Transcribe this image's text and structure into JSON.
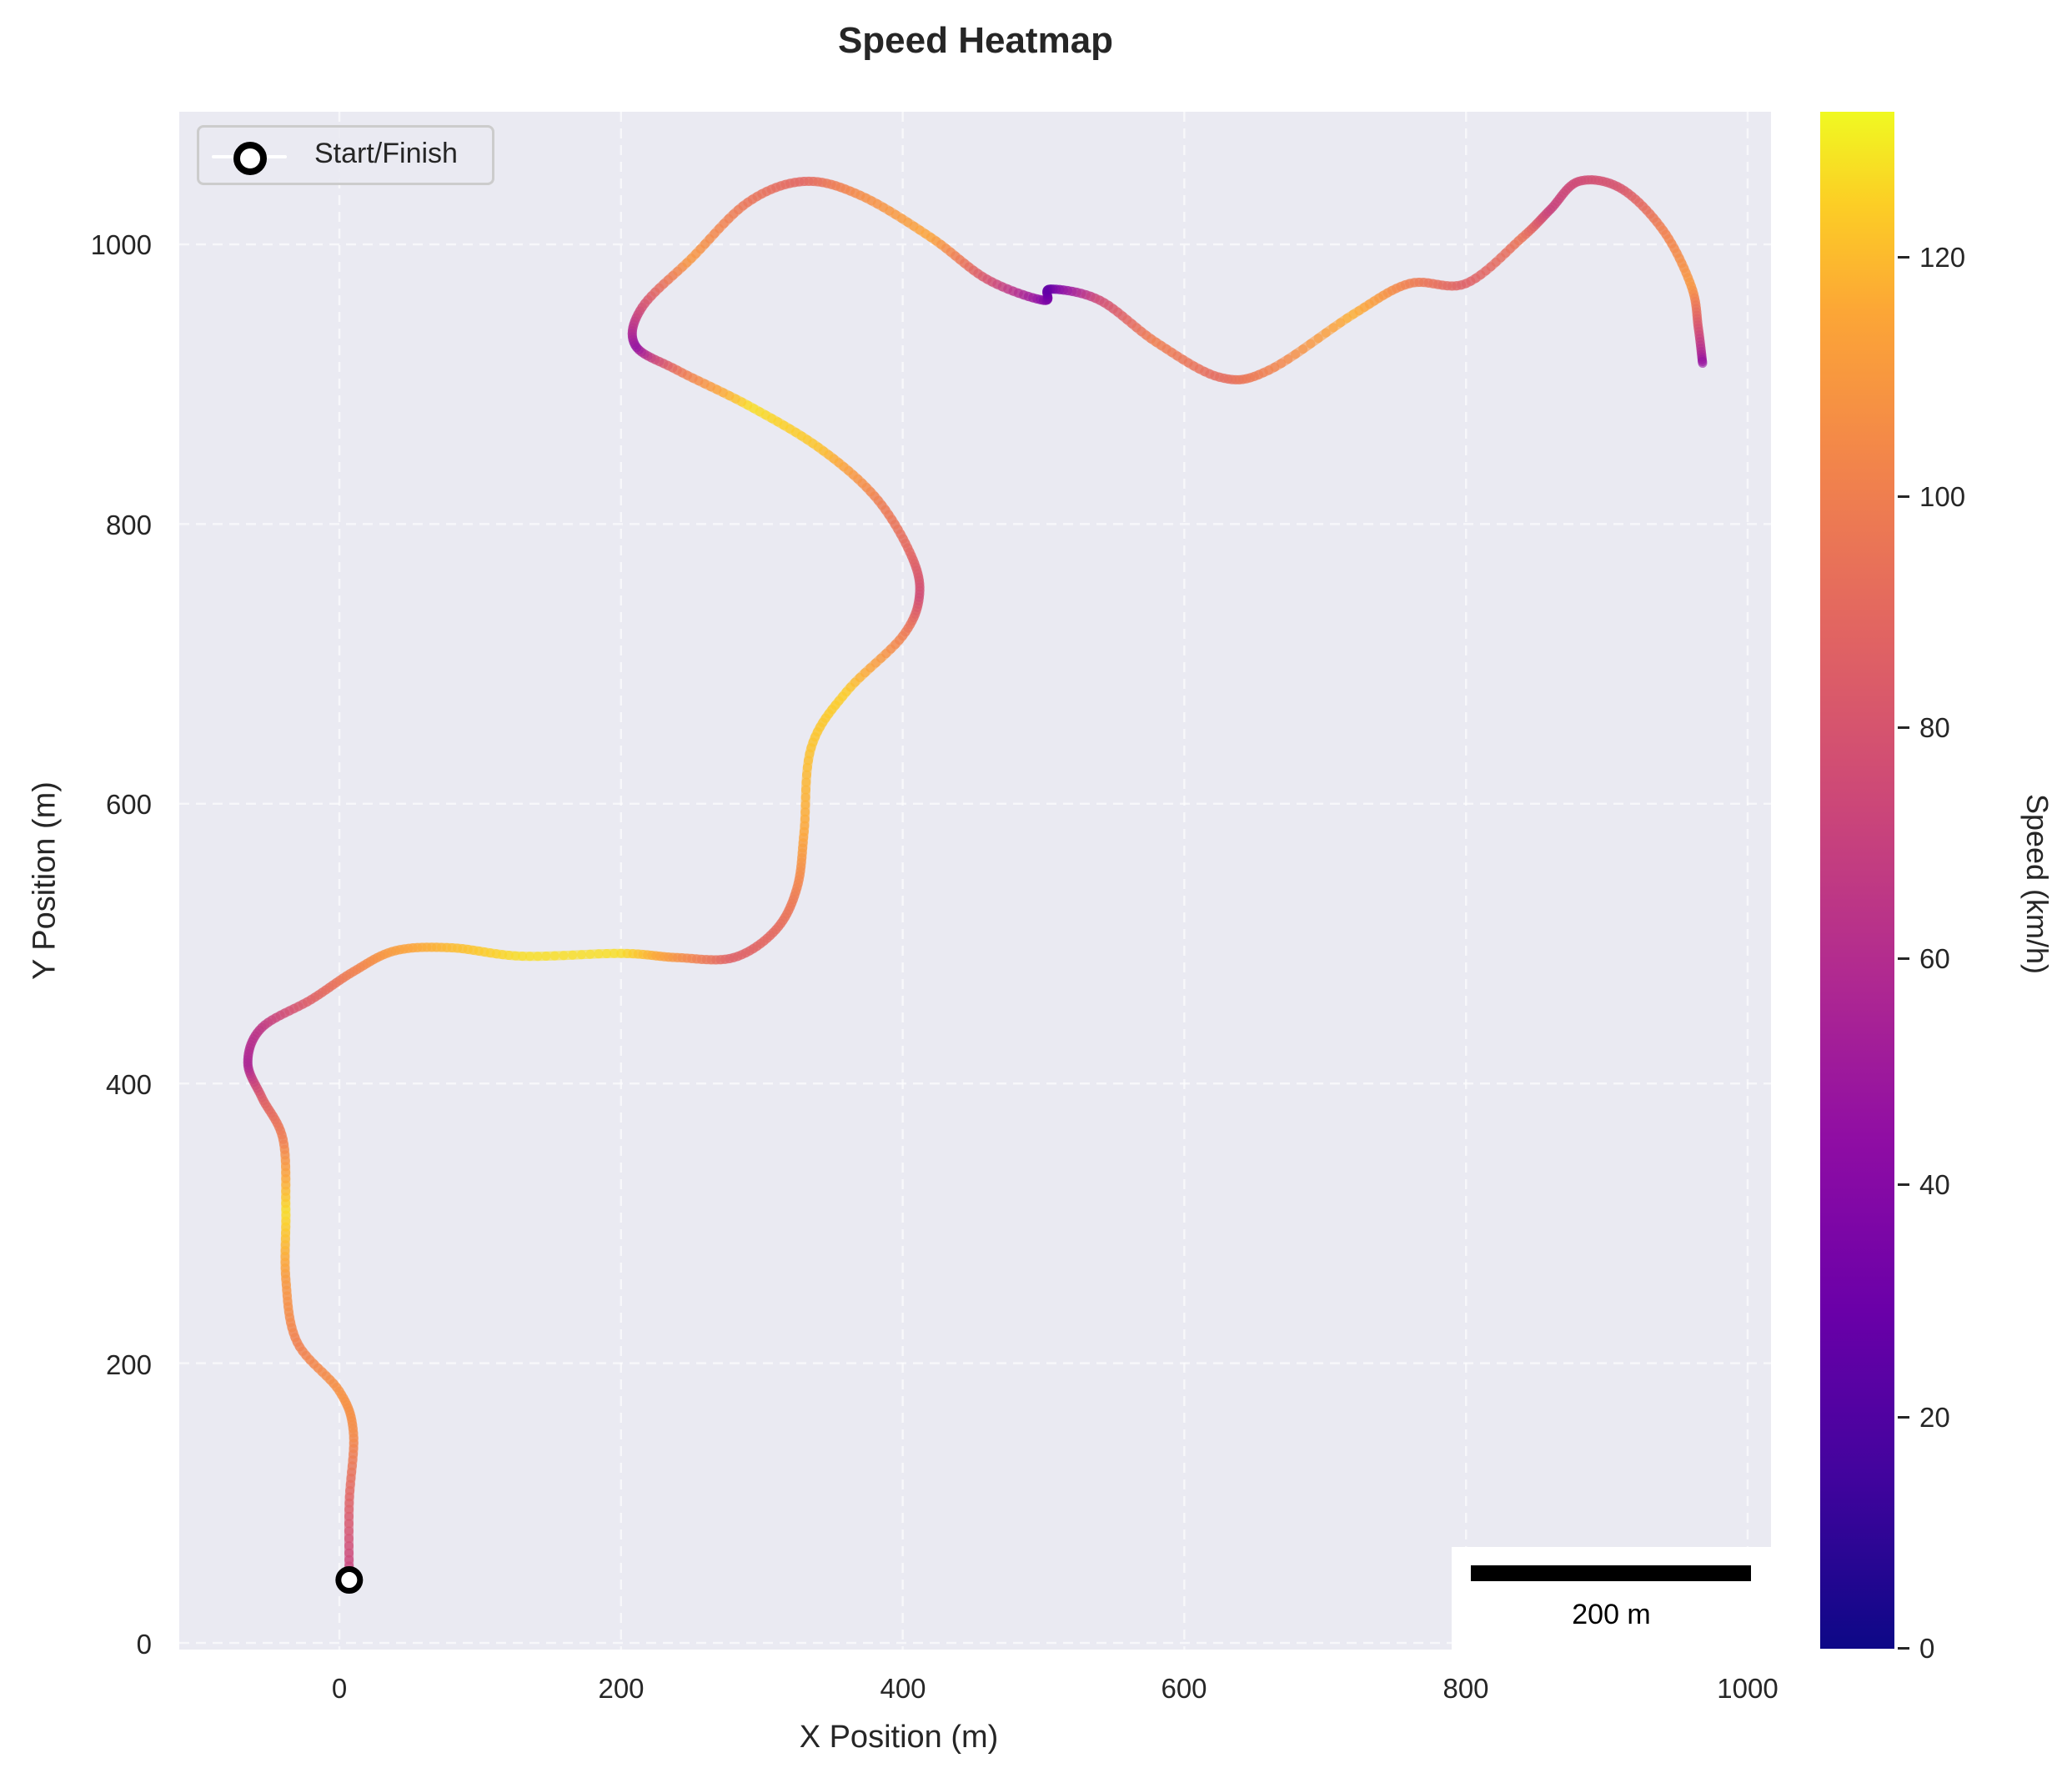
{
  "title": "Speed Heatmap",
  "xaxis": {
    "label": "X Position (m)",
    "ticks": [
      "0",
      "200",
      "400",
      "600",
      "800",
      "1000"
    ]
  },
  "yaxis": {
    "label": "Y Position (m)",
    "ticks": [
      "0",
      "200",
      "400",
      "600",
      "800",
      "1000"
    ]
  },
  "legend": {
    "label": "Start/Finish"
  },
  "scalebar": {
    "label": "200 m"
  },
  "colorbar": {
    "label": "Speed (km/h)",
    "ticks": [
      "0",
      "20",
      "40",
      "60",
      "80",
      "100",
      "120"
    ],
    "colormap": "plasma",
    "colors": [
      "#0d0887",
      "#6a00a8",
      "#b12a90",
      "#e16462",
      "#fca636",
      "#f0f921"
    ]
  },
  "chart_data": {
    "type": "line",
    "title": "Speed Heatmap",
    "xlabel": "X Position (m)",
    "ylabel": "Y Position (m)",
    "xlim": [
      -115,
      1015
    ],
    "ylim": [
      -5,
      1095
    ],
    "grid": true,
    "legend": {
      "position": "upper left",
      "entries": [
        "Start/Finish"
      ]
    },
    "colorbar": {
      "label": "Speed (km/h)",
      "range": [
        0,
        133
      ],
      "ticks": [
        0,
        20,
        40,
        60,
        80,
        100,
        120
      ]
    },
    "scalebar": {
      "length_m": 200,
      "label": "200 m",
      "position": "lower right"
    },
    "start_finish": {
      "x": 7,
      "y": 45
    },
    "track": [
      {
        "x": 7,
        "y": 45,
        "speed": 65
      },
      {
        "x": 7,
        "y": 100,
        "speed": 85
      },
      {
        "x": 10,
        "y": 150,
        "speed": 105
      },
      {
        "x": 0,
        "y": 180,
        "speed": 108
      },
      {
        "x": -30,
        "y": 215,
        "speed": 100
      },
      {
        "x": -38,
        "y": 260,
        "speed": 110
      },
      {
        "x": -38,
        "y": 310,
        "speed": 128
      },
      {
        "x": -40,
        "y": 360,
        "speed": 100
      },
      {
        "x": -55,
        "y": 390,
        "speed": 85
      },
      {
        "x": -65,
        "y": 415,
        "speed": 55
      },
      {
        "x": -55,
        "y": 440,
        "speed": 65
      },
      {
        "x": -20,
        "y": 460,
        "speed": 85
      },
      {
        "x": 10,
        "y": 480,
        "speed": 100
      },
      {
        "x": 40,
        "y": 495,
        "speed": 112
      },
      {
        "x": 80,
        "y": 497,
        "speed": 120
      },
      {
        "x": 130,
        "y": 491,
        "speed": 128
      },
      {
        "x": 200,
        "y": 493,
        "speed": 128
      },
      {
        "x": 240,
        "y": 490,
        "speed": 108
      },
      {
        "x": 280,
        "y": 490,
        "speed": 85
      },
      {
        "x": 310,
        "y": 510,
        "speed": 90
      },
      {
        "x": 325,
        "y": 540,
        "speed": 100
      },
      {
        "x": 330,
        "y": 580,
        "speed": 115
      },
      {
        "x": 335,
        "y": 640,
        "speed": 122
      },
      {
        "x": 360,
        "y": 680,
        "speed": 125
      },
      {
        "x": 400,
        "y": 720,
        "speed": 100
      },
      {
        "x": 412,
        "y": 750,
        "speed": 75
      },
      {
        "x": 405,
        "y": 780,
        "speed": 88
      },
      {
        "x": 380,
        "y": 820,
        "speed": 100
      },
      {
        "x": 340,
        "y": 855,
        "speed": 122
      },
      {
        "x": 290,
        "y": 885,
        "speed": 128
      },
      {
        "x": 240,
        "y": 910,
        "speed": 95
      },
      {
        "x": 210,
        "y": 928,
        "speed": 45
      },
      {
        "x": 215,
        "y": 955,
        "speed": 75
      },
      {
        "x": 250,
        "y": 990,
        "speed": 110
      },
      {
        "x": 290,
        "y": 1030,
        "speed": 95
      },
      {
        "x": 330,
        "y": 1045,
        "speed": 88
      },
      {
        "x": 370,
        "y": 1035,
        "speed": 105
      },
      {
        "x": 420,
        "y": 1005,
        "speed": 115
      },
      {
        "x": 460,
        "y": 975,
        "speed": 80
      },
      {
        "x": 500,
        "y": 960,
        "speed": 40
      },
      {
        "x": 505,
        "y": 968,
        "speed": 25
      },
      {
        "x": 540,
        "y": 960,
        "speed": 75
      },
      {
        "x": 580,
        "y": 930,
        "speed": 100
      },
      {
        "x": 625,
        "y": 905,
        "speed": 90
      },
      {
        "x": 660,
        "y": 910,
        "speed": 100
      },
      {
        "x": 720,
        "y": 950,
        "speed": 118
      },
      {
        "x": 760,
        "y": 972,
        "speed": 100
      },
      {
        "x": 800,
        "y": 972,
        "speed": 85
      },
      {
        "x": 840,
        "y": 1005,
        "speed": 95
      },
      {
        "x": 860,
        "y": 1025,
        "speed": 70
      },
      {
        "x": 880,
        "y": 1045,
        "speed": 75
      },
      {
        "x": 910,
        "y": 1040,
        "speed": 80
      },
      {
        "x": 940,
        "y": 1010,
        "speed": 100
      },
      {
        "x": 960,
        "y": 970,
        "speed": 110
      },
      {
        "x": 965,
        "y": 940,
        "speed": 80
      },
      {
        "x": 968,
        "y": 915,
        "speed": 45
      }
    ]
  }
}
